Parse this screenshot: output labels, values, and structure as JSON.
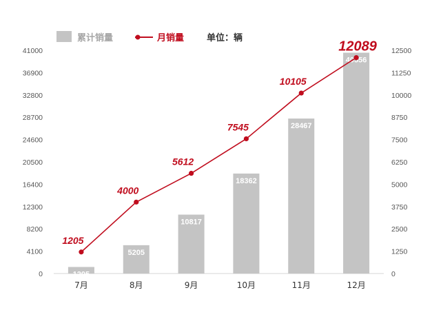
{
  "legend": {
    "bar_label": "累计销量",
    "line_label": "月销量",
    "unit_label": "单位：辆"
  },
  "colors": {
    "bar": "#c4c4c4",
    "line": "#c00d1e",
    "axis_text": "#555555",
    "line_axis_text": "#c00d1e"
  },
  "chart_data": {
    "type": "bar",
    "combo": "bar+line (dual y-axis)",
    "categories": [
      "7月",
      "8月",
      "9月",
      "10月",
      "11月",
      "12月"
    ],
    "series": [
      {
        "name": "累计销量",
        "type": "bar",
        "axis": "left",
        "values": [
          1205,
          5205,
          10817,
          18362,
          28467,
          40556
        ]
      },
      {
        "name": "月销量",
        "type": "line",
        "axis": "right",
        "values": [
          1205,
          4000,
          5612,
          7545,
          10105,
          12089
        ]
      }
    ],
    "y_left": {
      "ylim": [
        0,
        41000
      ],
      "ticks": [
        0,
        4100,
        8200,
        12300,
        16400,
        20500,
        24600,
        28700,
        32800,
        36900,
        41000
      ]
    },
    "y_right": {
      "ylim": [
        0,
        12500
      ],
      "ticks": [
        0,
        1250,
        2500,
        3750,
        5000,
        6250,
        7500,
        8750,
        10000,
        11250,
        12500
      ]
    },
    "grid": false,
    "legend_position": "top-left"
  }
}
